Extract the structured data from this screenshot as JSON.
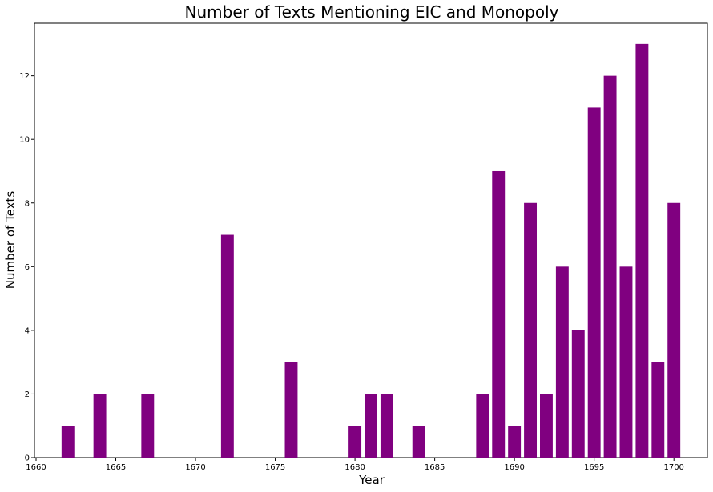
{
  "chart_data": {
    "type": "bar",
    "title": "Number of Texts Mentioning EIC and Monopoly",
    "xlabel": "Year",
    "ylabel": "Number of Texts",
    "x": [
      1662,
      1664,
      1667,
      1672,
      1676,
      1680,
      1681,
      1682,
      1684,
      1688,
      1689,
      1690,
      1691,
      1692,
      1693,
      1694,
      1695,
      1696,
      1697,
      1698,
      1699,
      1700
    ],
    "values": [
      1,
      2,
      2,
      7,
      3,
      1,
      2,
      2,
      1,
      2,
      9,
      1,
      8,
      2,
      6,
      4,
      11,
      12,
      6,
      13,
      3,
      8
    ],
    "xlim": [
      1659.9,
      1702.1
    ],
    "ylim": [
      0,
      13.65
    ],
    "xticks": [
      1660,
      1665,
      1670,
      1675,
      1680,
      1685,
      1690,
      1695,
      1700
    ],
    "yticks": [
      0,
      2,
      4,
      6,
      8,
      10,
      12
    ],
    "bar_color": "#800080",
    "grid": false,
    "legend": "none"
  }
}
